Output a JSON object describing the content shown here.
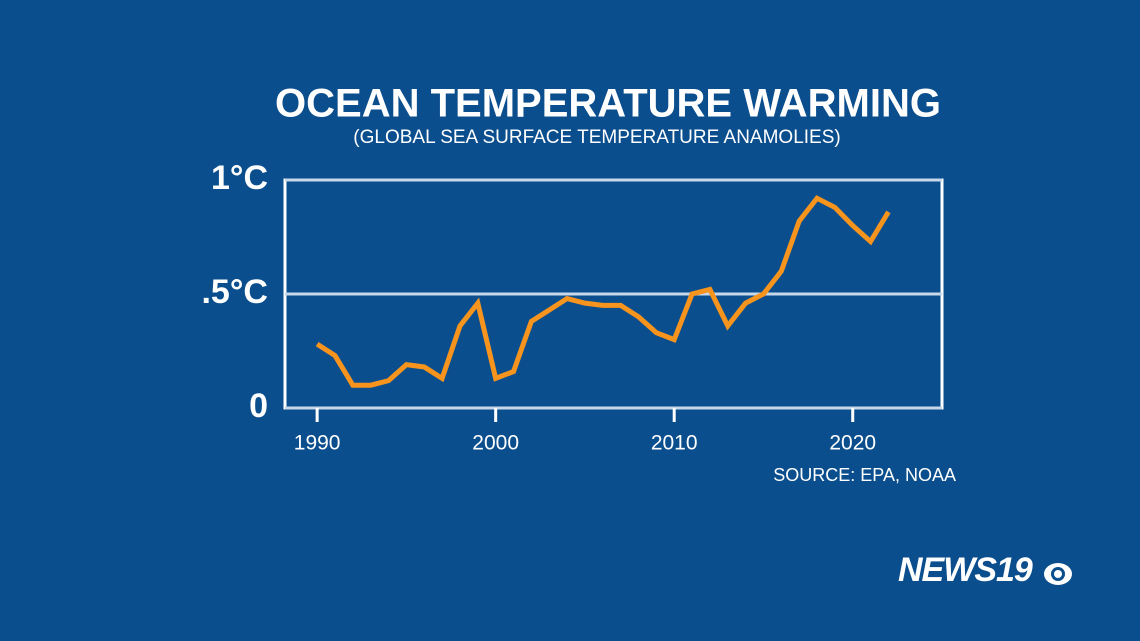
{
  "chart_data": {
    "type": "line",
    "title": "OCEAN TEMPERATURE WARMING",
    "subtitle": "(GLOBAL SEA SURFACE TEMPERATURE ANAMOLIES)",
    "source": "SOURCE: EPA, NOAA",
    "logo": "NEWS19",
    "x": [
      1990,
      1991,
      1992,
      1993,
      1994,
      1995,
      1996,
      1997,
      1998,
      1999,
      2000,
      2001,
      2002,
      2003,
      2004,
      2005,
      2006,
      2007,
      2008,
      2009,
      2010,
      2011,
      2012,
      2013,
      2014,
      2015,
      2016,
      2017,
      2018,
      2019,
      2020,
      2021,
      2022
    ],
    "values": [
      0.28,
      0.23,
      0.1,
      0.1,
      0.12,
      0.19,
      0.18,
      0.13,
      0.36,
      0.46,
      0.13,
      0.16,
      0.38,
      0.43,
      0.48,
      0.46,
      0.45,
      0.45,
      0.4,
      0.33,
      0.3,
      0.5,
      0.52,
      0.36,
      0.46,
      0.5,
      0.6,
      0.82,
      0.92,
      0.88,
      0.8,
      0.73,
      0.86
    ],
    "color": "#f7941d",
    "xlim": [
      1988.2,
      2025
    ],
    "xticks": [
      1990,
      2000,
      2010,
      2020
    ],
    "ylim": [
      0,
      1
    ],
    "yticks": [
      0,
      {
        "value": 0.5,
        "label": ".5°C"
      },
      {
        "value": 1,
        "label": "1°C"
      }
    ],
    "grid": true
  }
}
